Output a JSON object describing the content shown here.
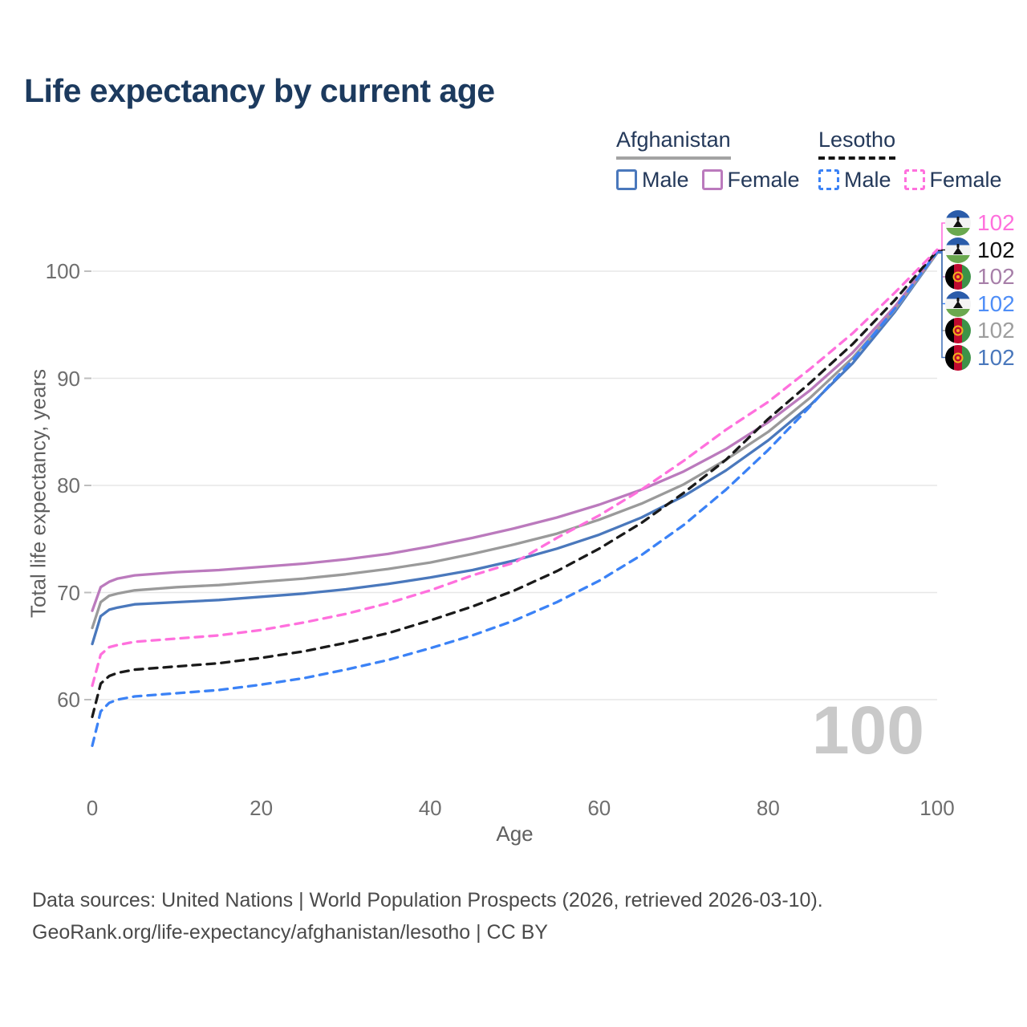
{
  "title": "Life expectancy by current age",
  "legend": {
    "groups": [
      {
        "label": "Afghanistan",
        "underline_style": "solid-gray",
        "items": [
          {
            "label": "Male",
            "line_style": "solid",
            "color": "#4a78bc"
          },
          {
            "label": "Female",
            "line_style": "solid",
            "color": "#bb7abd"
          }
        ]
      },
      {
        "label": "Lesotho",
        "underline_style": "dashed-black",
        "items": [
          {
            "label": "Male",
            "line_style": "dashed",
            "color": "#3b82f6"
          },
          {
            "label": "Female",
            "line_style": "dashed",
            "color": "#ff70dd"
          }
        ]
      }
    ]
  },
  "chart_data": {
    "type": "line",
    "title": "Life expectancy by current age",
    "xlabel": "Age",
    "ylabel": "Total life expectancy, years",
    "xlim": [
      0,
      100
    ],
    "ylim": [
      55,
      104
    ],
    "x_ticks": [
      "0",
      "20",
      "40",
      "60",
      "80",
      "100"
    ],
    "x_tick_values": [
      0,
      20,
      40,
      60,
      80,
      100
    ],
    "y_ticks": [
      "60",
      "70",
      "80",
      "90",
      "100"
    ],
    "y_tick_values": [
      60,
      70,
      80,
      90,
      100
    ],
    "grid": "horizontal",
    "legend_position": "top-right",
    "watermark": "100",
    "x": [
      0,
      1,
      2,
      3,
      5,
      10,
      15,
      20,
      25,
      30,
      35,
      40,
      45,
      50,
      55,
      60,
      65,
      70,
      75,
      80,
      85,
      90,
      95,
      100
    ],
    "series": [
      {
        "id": "afg-male",
        "name": "Afghanistan Male",
        "country": "Afghanistan",
        "sex": "Male",
        "color": "#4a78bc",
        "dash": "solid",
        "flag": "afghanistan",
        "end_label": "102",
        "label_color": "#4a78bc",
        "label_row": 5,
        "values": [
          65.2,
          67.8,
          68.4,
          68.6,
          68.9,
          69.1,
          69.3,
          69.6,
          69.9,
          70.3,
          70.8,
          71.4,
          72.1,
          73.0,
          74.1,
          75.4,
          77.0,
          79.0,
          81.4,
          84.2,
          87.5,
          91.4,
          96.2,
          101.7
        ]
      },
      {
        "id": "afg-both",
        "name": "Afghanistan Both sexes",
        "country": "Afghanistan",
        "sex": "Both",
        "color": "#9a9a9a",
        "dash": "solid",
        "flag": "afghanistan",
        "end_label": "102",
        "label_color": "#9e9e9e",
        "label_row": 4,
        "values": [
          66.7,
          69.1,
          69.7,
          69.9,
          70.2,
          70.5,
          70.7,
          71.0,
          71.3,
          71.7,
          72.2,
          72.8,
          73.6,
          74.5,
          75.5,
          76.8,
          78.3,
          80.1,
          82.4,
          85.0,
          88.2,
          91.9,
          96.4,
          101.7
        ]
      },
      {
        "id": "afg-female",
        "name": "Afghanistan Female",
        "country": "Afghanistan",
        "sex": "Female",
        "color": "#bb7abd",
        "dash": "solid",
        "flag": "afghanistan",
        "end_label": "102",
        "label_color": "#a77fa9",
        "label_row": 2,
        "values": [
          68.3,
          70.5,
          71.0,
          71.3,
          71.6,
          71.9,
          72.1,
          72.4,
          72.7,
          73.1,
          73.6,
          74.3,
          75.1,
          76.0,
          77.0,
          78.2,
          79.6,
          81.3,
          83.4,
          85.9,
          88.9,
          92.4,
          96.7,
          101.8
        ]
      },
      {
        "id": "les-male",
        "name": "Lesotho Male",
        "country": "Lesotho",
        "sex": "Male",
        "color": "#3b82f6",
        "dash": "dashed",
        "flag": "lesotho",
        "end_label": "102",
        "label_color": "#4f8ef7",
        "label_row": 3,
        "values": [
          55.7,
          58.9,
          59.7,
          60.0,
          60.3,
          60.6,
          60.9,
          61.4,
          62.0,
          62.8,
          63.7,
          64.8,
          66.0,
          67.4,
          69.1,
          71.1,
          73.5,
          76.3,
          79.6,
          83.3,
          87.4,
          91.7,
          96.5,
          101.8
        ]
      },
      {
        "id": "les-both",
        "name": "Lesotho Both sexes",
        "country": "Lesotho",
        "sex": "Both",
        "color": "#1a1a1a",
        "dash": "dashed",
        "flag": "lesotho",
        "end_label": "102",
        "label_color": "#111111",
        "label_row": 1,
        "values": [
          58.4,
          61.5,
          62.2,
          62.5,
          62.8,
          63.1,
          63.4,
          63.9,
          64.5,
          65.3,
          66.2,
          67.4,
          68.7,
          70.2,
          72.0,
          74.1,
          76.5,
          79.3,
          82.4,
          86.2,
          89.6,
          93.2,
          97.3,
          101.9
        ]
      },
      {
        "id": "les-female",
        "name": "Lesotho Female",
        "country": "Lesotho",
        "sex": "Female",
        "color": "#ff70dd",
        "dash": "dashed",
        "flag": "lesotho",
        "end_label": "102",
        "label_color": "#ff70dd",
        "label_row": 0,
        "values": [
          61.3,
          64.2,
          64.9,
          65.1,
          65.4,
          65.7,
          66.0,
          66.5,
          67.2,
          68.0,
          69.0,
          70.2,
          71.6,
          72.8,
          75.1,
          77.2,
          79.6,
          82.3,
          85.2,
          87.8,
          90.9,
          94.2,
          98.0,
          102.0
        ]
      }
    ]
  },
  "footer": {
    "line1": "Data sources: United Nations | World Population Prospects (2026, retrieved 2026-03-10).",
    "line2": "GeoRank.org/life-expectancy/afghanistan/lesotho | CC BY"
  }
}
